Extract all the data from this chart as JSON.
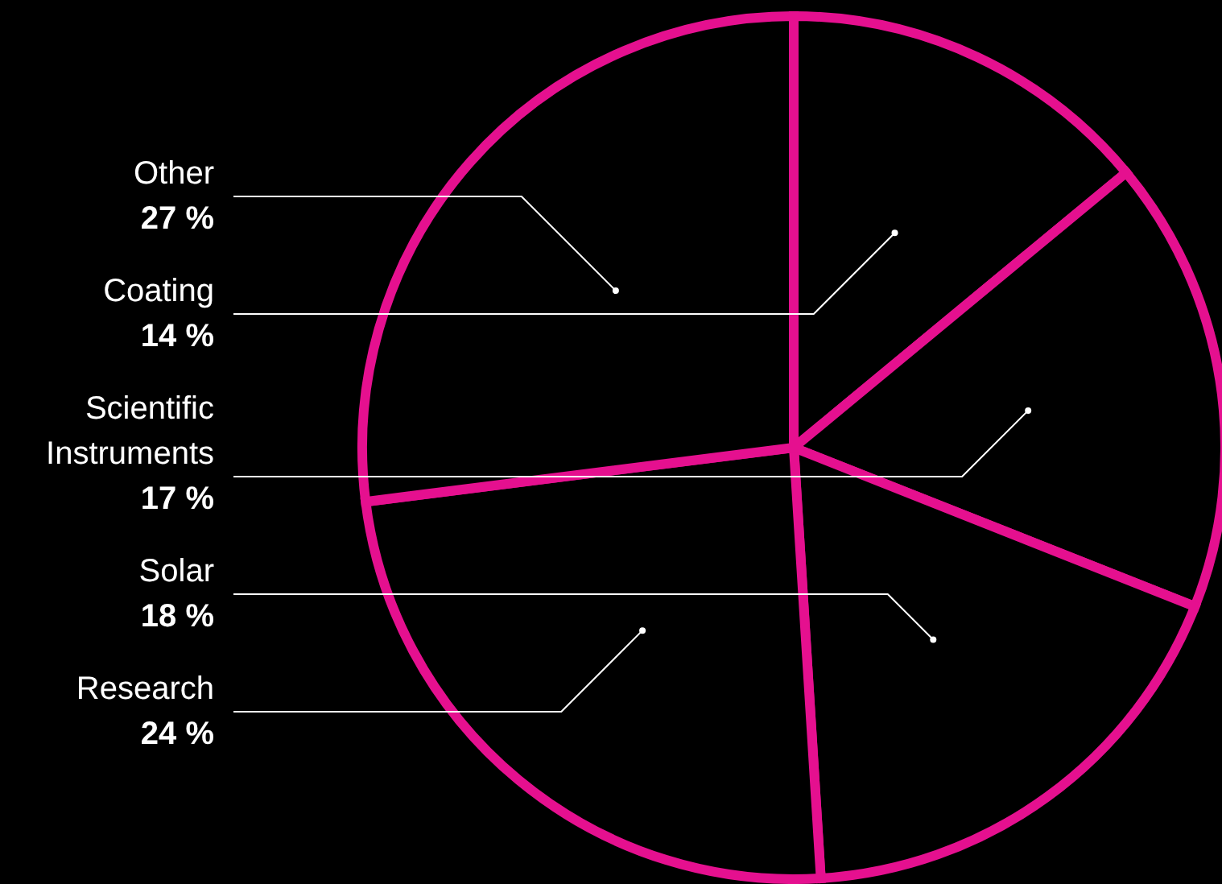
{
  "chart_data": {
    "type": "pie",
    "categories": [
      "Coating",
      "Scientific Instruments",
      "Solar",
      "Research",
      "Other"
    ],
    "values": [
      14,
      17,
      18,
      24,
      27
    ],
    "value_labels": [
      "14 %",
      "17 %",
      "18 %",
      "24 %",
      "27 %"
    ],
    "colors": [
      "#000000",
      "#000000",
      "#000000",
      "#000000",
      "#000000"
    ]
  }
}
